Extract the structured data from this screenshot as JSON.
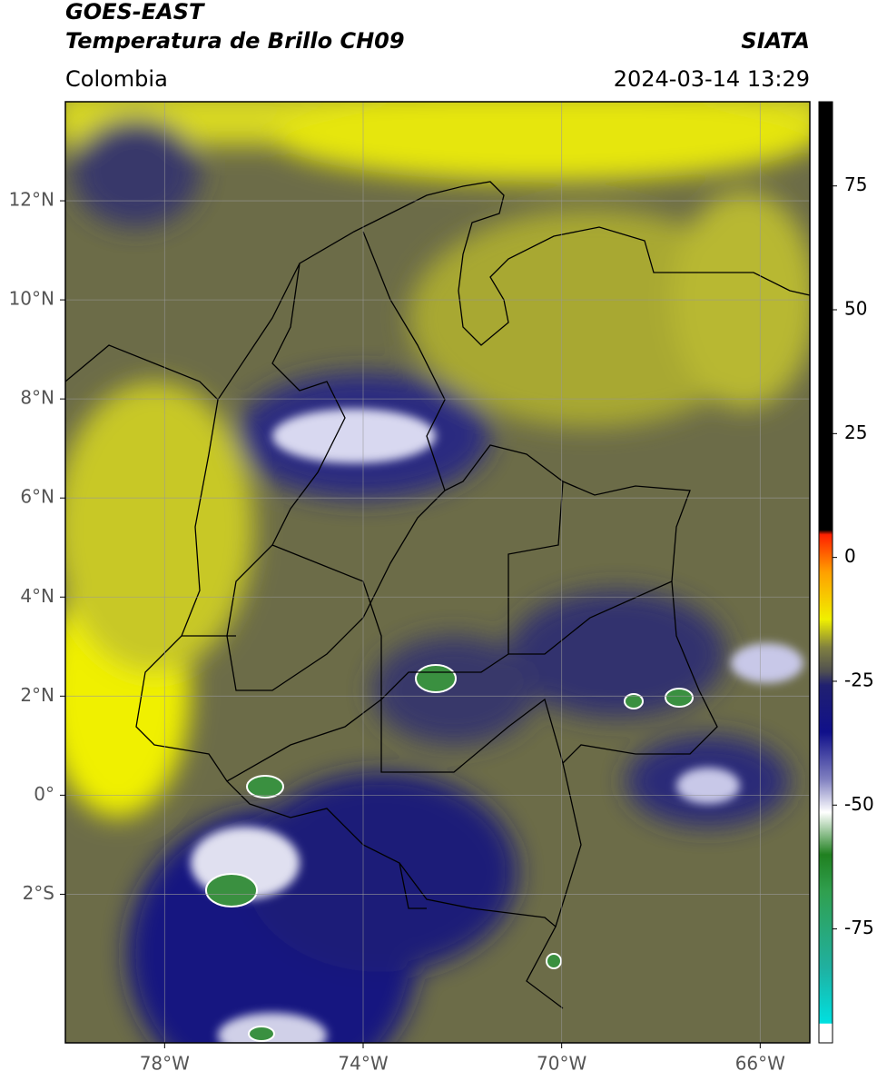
{
  "header": {
    "title": "GOES-EAST",
    "subtitle": "Temperatura de Brillo CH09",
    "source": "SIATA",
    "region": "Colombia",
    "datetime": "2024-03-14 13:29"
  },
  "map": {
    "xlim": [
      -80,
      -65
    ],
    "ylim": [
      -5,
      14
    ],
    "xticks": [
      {
        "value": -78,
        "label": "78°W"
      },
      {
        "value": -74,
        "label": "74°W"
      },
      {
        "value": -70,
        "label": "70°W"
      },
      {
        "value": -66,
        "label": "66°W"
      }
    ],
    "yticks": [
      {
        "value": 12,
        "label": "12°N"
      },
      {
        "value": 10,
        "label": "10°N"
      },
      {
        "value": 8,
        "label": "8°N"
      },
      {
        "value": 6,
        "label": "6°N"
      },
      {
        "value": 4,
        "label": "4°N"
      },
      {
        "value": 2,
        "label": "2°N"
      },
      {
        "value": 0,
        "label": "0°"
      },
      {
        "value": -2,
        "label": "2°S"
      }
    ],
    "grid": true
  },
  "colorbar": {
    "lim": [
      -98,
      92
    ],
    "ticks": [
      75,
      50,
      25,
      0,
      -25,
      -50,
      -75
    ]
  }
}
